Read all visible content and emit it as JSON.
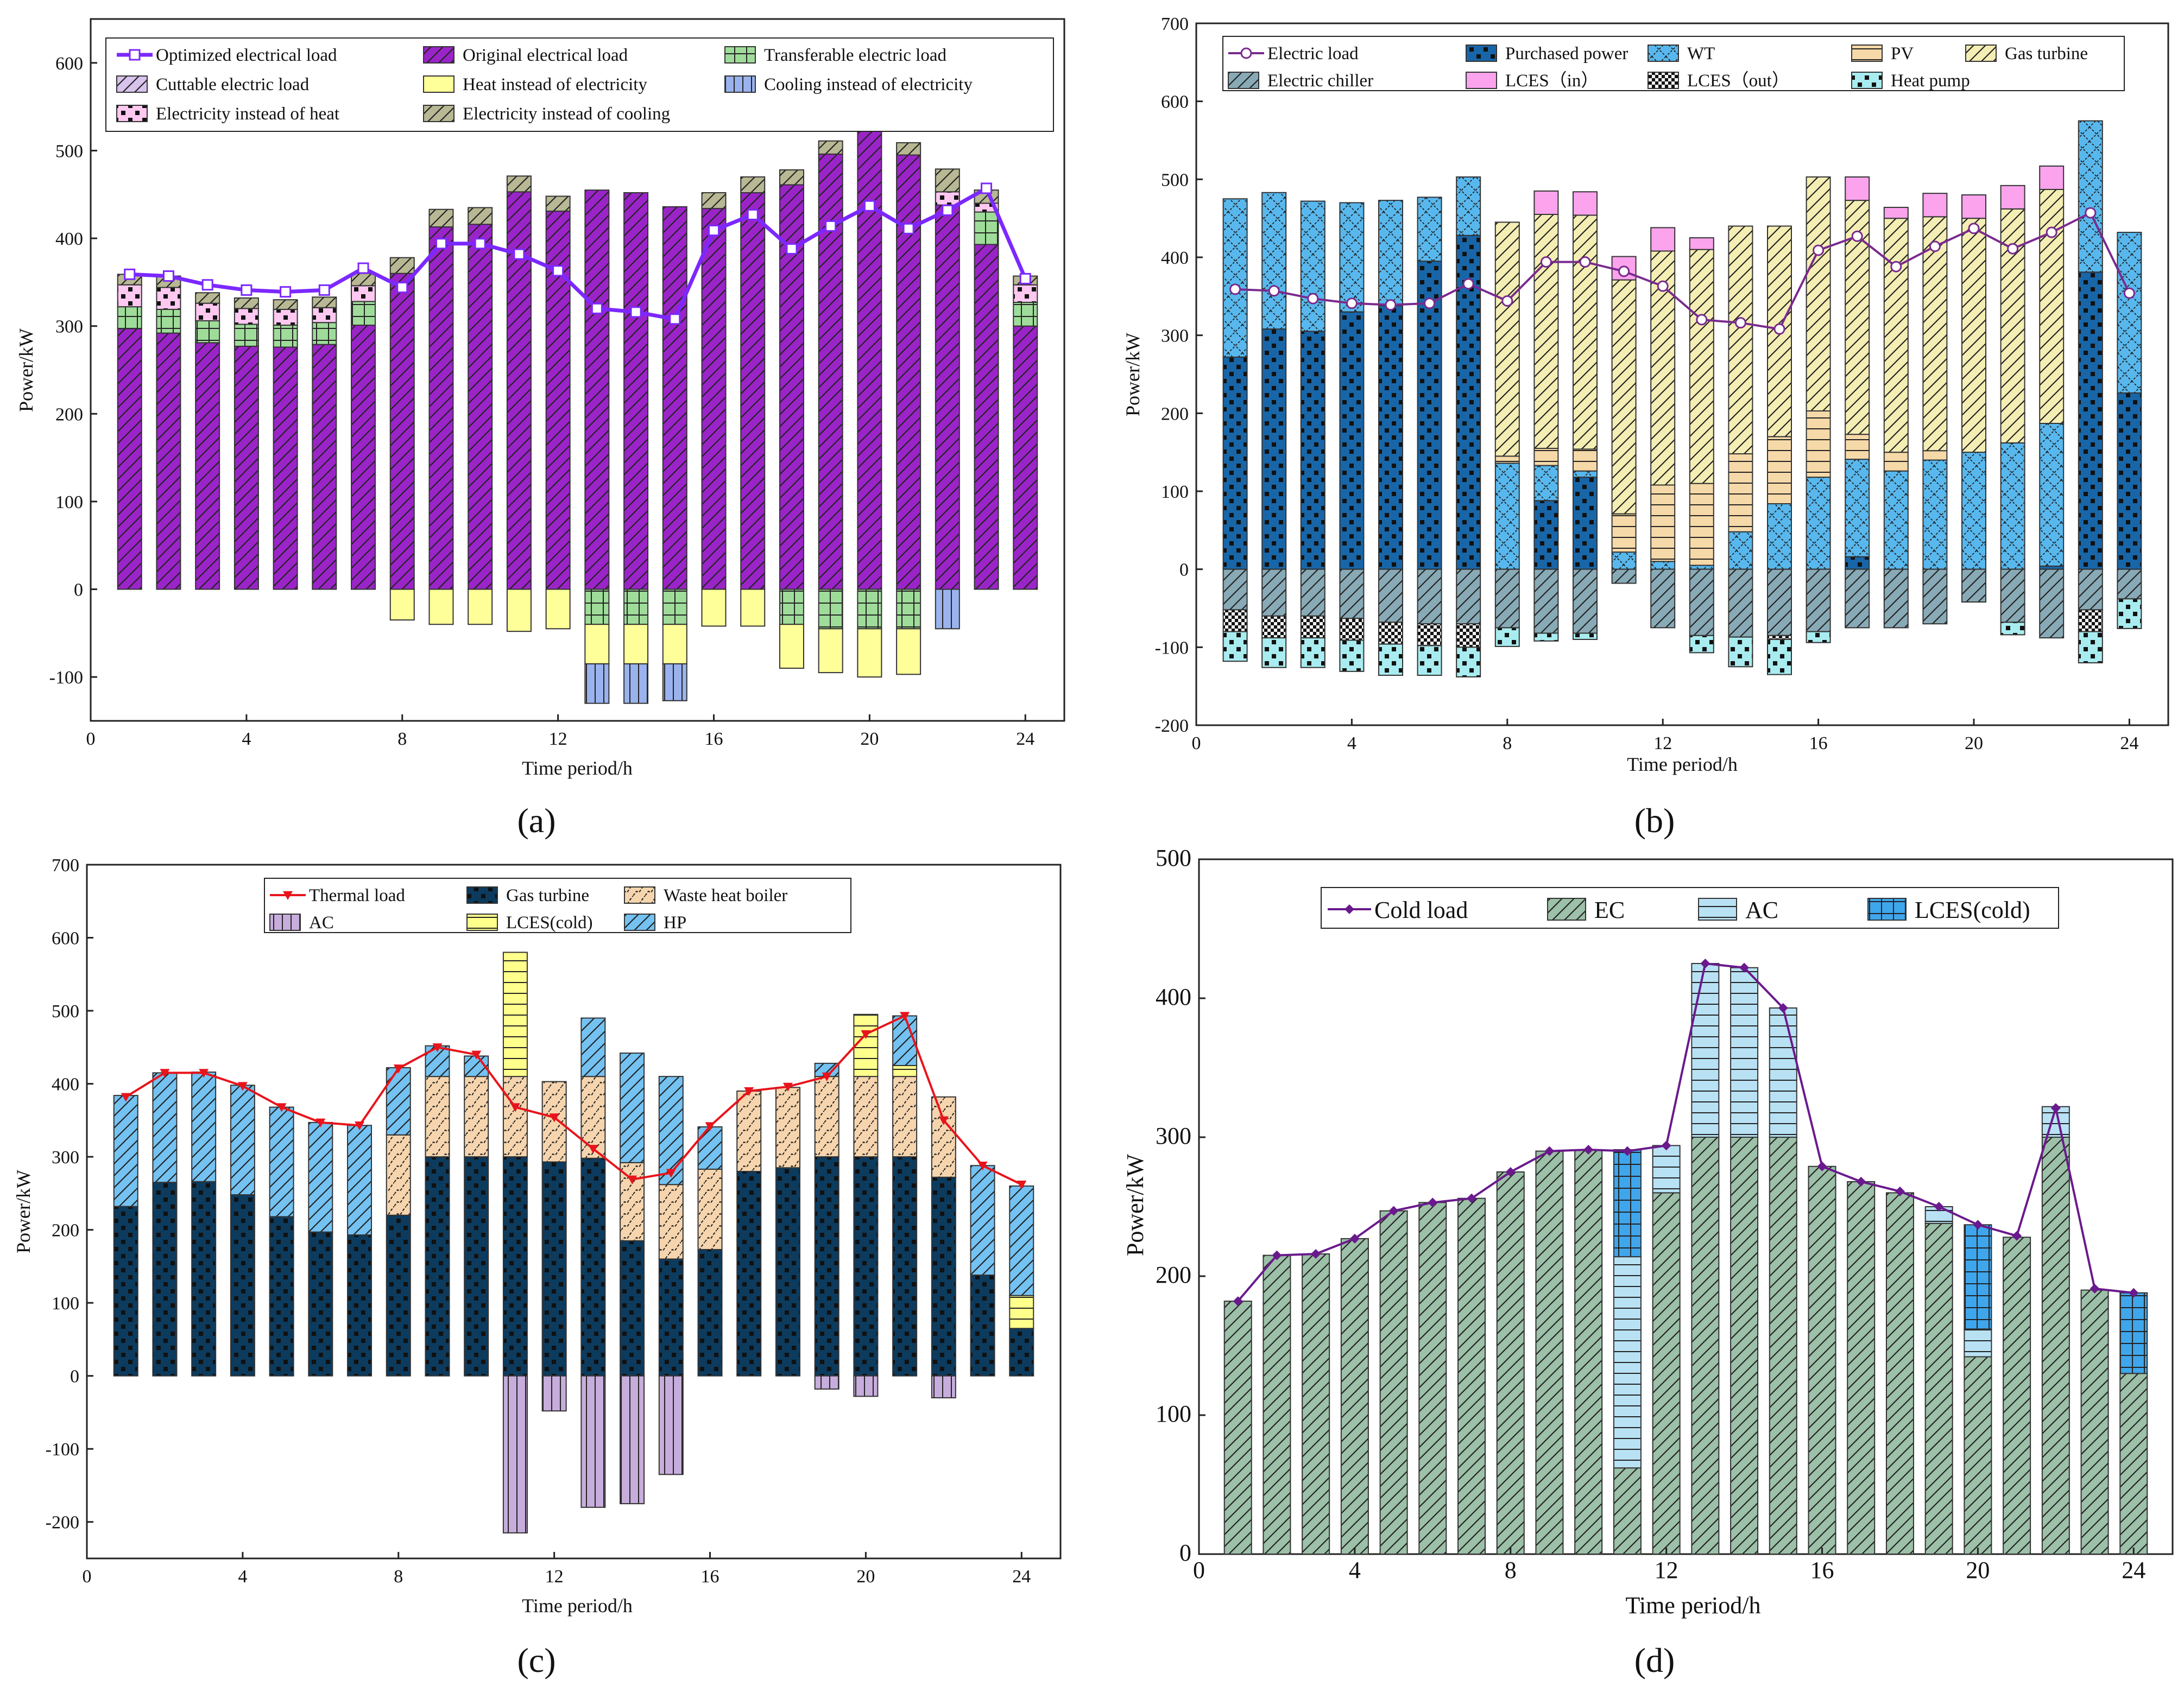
{
  "figure_labels": [
    "(a)",
    "(b)",
    "(c)",
    "(d)"
  ],
  "chart_data": [
    {
      "type": "bar",
      "id": "a",
      "panel_label": "(a)",
      "xlabel": "Time period/h",
      "ylabel": "Power/kW",
      "xlim": [
        0,
        25
      ],
      "ylim": [
        -150,
        650
      ],
      "xticks": [
        0,
        4,
        8,
        12,
        16,
        20,
        24
      ],
      "yticks": [
        -100,
        0,
        100,
        200,
        300,
        400,
        500,
        600
      ],
      "categories": [
        1,
        2,
        3,
        4,
        5,
        6,
        7,
        8,
        9,
        10,
        11,
        12,
        13,
        14,
        15,
        16,
        17,
        18,
        19,
        20,
        21,
        22,
        23,
        24
      ],
      "series": [
        {
          "name": "Original electrical load",
          "color": "#9b24c8",
          "hatch": "diag",
          "values": [
            297,
            292,
            281,
            277,
            276,
            279,
            301,
            360,
            413,
            416,
            453,
            431,
            455,
            452,
            436,
            434,
            452,
            461,
            496,
            525,
            495,
            438,
            393,
            300
          ]
        },
        {
          "name": "Transferable electric load",
          "color": "#9fdc9a",
          "hatch": "grid",
          "values": [
            25,
            27,
            25,
            25,
            25,
            25,
            27,
            0,
            0,
            0,
            0,
            0,
            -40,
            -40,
            -40,
            0,
            0,
            -40,
            -45,
            -45,
            -45,
            0,
            37,
            27
          ]
        },
        {
          "name": "Cuttable electric load",
          "color": "#d7c3ec",
          "hatch": "diag",
          "values": [
            0,
            0,
            0,
            0,
            0,
            0,
            0,
            0,
            0,
            0,
            0,
            0,
            0,
            0,
            0,
            0,
            0,
            0,
            0,
            0,
            0,
            0,
            0,
            0
          ]
        },
        {
          "name": "Heat instead of electricity",
          "color": "#ffff99",
          "hatch": "none",
          "values": [
            0,
            0,
            0,
            0,
            0,
            0,
            0,
            -35,
            -40,
            -40,
            -48,
            -45,
            -45,
            -45,
            -45,
            -42,
            -42,
            -50,
            -50,
            -55,
            -52,
            0,
            0,
            0
          ]
        },
        {
          "name": "Cooling instead of electricity",
          "color": "#9ab3ee",
          "hatch": "vline",
          "values": [
            0,
            0,
            0,
            0,
            0,
            0,
            0,
            0,
            0,
            0,
            0,
            0,
            -45,
            -45,
            -42,
            0,
            0,
            0,
            0,
            0,
            0,
            -45,
            0,
            0
          ]
        },
        {
          "name": "Electricity instead of heat",
          "color": "#ffc8f0",
          "hatch": "dots",
          "values": [
            25,
            25,
            20,
            18,
            18,
            17,
            18,
            0,
            0,
            0,
            0,
            0,
            0,
            0,
            0,
            0,
            0,
            0,
            0,
            0,
            0,
            15,
            10,
            20
          ]
        },
        {
          "name": "Electricity instead of cooling",
          "color": "#b8b894",
          "hatch": "diag",
          "values": [
            12,
            13,
            12,
            12,
            11,
            12,
            14,
            18,
            20,
            19,
            18,
            17,
            0,
            0,
            0,
            18,
            18,
            17,
            15,
            0,
            14,
            26,
            15,
            10
          ]
        }
      ],
      "lines": [
        {
          "name": "Optimized electrical load",
          "color": "#7c28ff",
          "marker": "square",
          "values": [
            359,
            357,
            347,
            341,
            339,
            341,
            366,
            344,
            394,
            394,
            382,
            363,
            320,
            316,
            308,
            409,
            427,
            388,
            414,
            437,
            411,
            432,
            457,
            354
          ]
        }
      ],
      "legend": [
        "Optimized electrical load",
        "Original electrical load",
        "Transferable electric load",
        "Cuttable electric load",
        "Heat instead of electricity",
        "Cooling instead of electricity",
        "Electricity instead of heat",
        "Electricity instead of cooling"
      ]
    },
    {
      "type": "bar",
      "id": "b",
      "panel_label": "(b)",
      "xlabel": "Time period/h",
      "ylabel": "Power/kW",
      "xlim": [
        0,
        25
      ],
      "ylim": [
        -200,
        700
      ],
      "xticks": [
        0,
        4,
        8,
        12,
        16,
        20,
        24
      ],
      "yticks": [
        -200,
        -100,
        0,
        100,
        200,
        300,
        400,
        500,
        600,
        700
      ],
      "categories": [
        1,
        2,
        3,
        4,
        5,
        6,
        7,
        8,
        9,
        10,
        11,
        12,
        13,
        14,
        15,
        16,
        17,
        18,
        19,
        20,
        21,
        22,
        23,
        24
      ],
      "series": [
        {
          "name": "Purchased power",
          "color": "#1866a8",
          "hatch": "dots",
          "values": [
            272,
            308,
            305,
            330,
            338,
            395,
            428,
            0,
            88,
            118,
            0,
            0,
            0,
            0,
            0,
            0,
            16,
            0,
            0,
            0,
            0,
            4,
            381,
            226
          ]
        },
        {
          "name": "WT",
          "color": "#58b8ee",
          "hatch": "cross",
          "values": [
            203,
            175,
            167,
            140,
            135,
            82,
            75,
            136,
            45,
            8,
            22,
            10,
            5,
            48,
            84,
            118,
            125,
            126,
            140,
            150,
            162,
            183,
            194,
            206
          ]
        },
        {
          "name": "PV",
          "color": "#f6d9a8",
          "hatch": "hline",
          "values": [
            0,
            0,
            0,
            0,
            0,
            0,
            0,
            9,
            22,
            28,
            49,
            98,
            105,
            100,
            86,
            85,
            32,
            24,
            12,
            0,
            0,
            0,
            0,
            0
          ]
        },
        {
          "name": "Gas turbine",
          "color": "#f5eeb4",
          "hatch": "diag",
          "values": [
            0,
            0,
            0,
            0,
            0,
            0,
            0,
            300,
            300,
            300,
            300,
            300,
            300,
            292,
            270,
            300,
            300,
            300,
            300,
            300,
            300,
            300,
            0,
            0
          ]
        },
        {
          "name": "LCES（in）",
          "color": "#fba3ec",
          "hatch": "none",
          "values": [
            0,
            0,
            0,
            0,
            0,
            0,
            0,
            0,
            30,
            30,
            30,
            30,
            15,
            0,
            0,
            0,
            30,
            14,
            30,
            30,
            30,
            30,
            0,
            0
          ]
        },
        {
          "name": "Electric chiller",
          "color": "#88aab6",
          "hatch": "diag",
          "values": [
            -52,
            -60,
            -60,
            -63,
            -68,
            -70,
            -70,
            -75,
            -82,
            -82,
            -18,
            -75,
            -85,
            -87,
            -85,
            -80,
            -75,
            -75,
            -70,
            -42,
            -68,
            -88,
            -52,
            -38
          ]
        },
        {
          "name": "LCES（out）",
          "color": "#111111",
          "hatch": "checker",
          "values": [
            -28,
            -28,
            -28,
            -28,
            -28,
            -28,
            -30,
            0,
            0,
            0,
            0,
            0,
            0,
            0,
            -5,
            0,
            0,
            0,
            0,
            0,
            0,
            0,
            -28,
            0
          ]
        },
        {
          "name": "Heat pump",
          "color": "#a8ecf0",
          "hatch": "dots",
          "values": [
            -38,
            -38,
            -38,
            -40,
            -40,
            -38,
            -38,
            -24,
            -10,
            -8,
            0,
            0,
            -22,
            -38,
            -45,
            -14,
            0,
            0,
            0,
            0,
            -16,
            0,
            -40,
            -38
          ]
        }
      ],
      "lines": [
        {
          "name": "Electric load",
          "color": "#7a2a8e",
          "marker": "circle",
          "values": [
            359,
            357,
            347,
            341,
            339,
            341,
            366,
            344,
            394,
            394,
            382,
            363,
            320,
            316,
            308,
            409,
            427,
            388,
            414,
            437,
            411,
            432,
            457,
            354
          ]
        }
      ],
      "legend": [
        "Electric load",
        "Purchased power",
        "WT",
        "PV",
        "Gas turbine",
        "Electric chiller",
        "LCES（in）",
        "LCES（out）",
        "Heat pump"
      ]
    },
    {
      "type": "bar",
      "id": "c",
      "panel_label": "(c)",
      "xlabel": "Time period/h",
      "ylabel": "Power/kW",
      "xlim": [
        0,
        25
      ],
      "ylim": [
        -250,
        700
      ],
      "xticks": [
        0,
        4,
        8,
        12,
        16,
        20,
        24
      ],
      "yticks": [
        -200,
        -100,
        0,
        100,
        200,
        300,
        400,
        500,
        600,
        700
      ],
      "categories": [
        1,
        2,
        3,
        4,
        5,
        6,
        7,
        8,
        9,
        10,
        11,
        12,
        13,
        14,
        15,
        16,
        17,
        18,
        19,
        20,
        21,
        22,
        23,
        24
      ],
      "series": [
        {
          "name": "Gas turbine",
          "color": "#0c3b5e",
          "hatch": "dots",
          "values": [
            232,
            265,
            266,
            248,
            218,
            197,
            193,
            220,
            300,
            300,
            300,
            293,
            298,
            185,
            160,
            173,
            280,
            285,
            300,
            300,
            300,
            272,
            138,
            65
          ]
        },
        {
          "name": "Waste heat boiler",
          "color": "#f6d5ae",
          "hatch": "zigzag",
          "values": [
            0,
            0,
            0,
            0,
            0,
            0,
            0,
            110,
            110,
            110,
            110,
            110,
            112,
            107,
            102,
            110,
            110,
            110,
            110,
            110,
            110,
            110,
            0,
            0
          ]
        },
        {
          "name": "LCES(cold)",
          "color": "#ffff8c",
          "hatch": "hline",
          "values": [
            0,
            0,
            0,
            0,
            0,
            0,
            0,
            0,
            0,
            0,
            170,
            0,
            0,
            0,
            0,
            0,
            0,
            0,
            0,
            85,
            15,
            0,
            0,
            45
          ]
        },
        {
          "name": "HP",
          "color": "#74c2f2",
          "hatch": "diag",
          "values": [
            152,
            150,
            150,
            150,
            150,
            150,
            150,
            92,
            42,
            28,
            0,
            0,
            80,
            150,
            148,
            58,
            0,
            0,
            18,
            0,
            68,
            0,
            150,
            150
          ]
        },
        {
          "name": "AC",
          "color": "#c6addc",
          "hatch": "vline",
          "values": [
            0,
            0,
            0,
            0,
            0,
            0,
            0,
            0,
            0,
            0,
            -215,
            -48,
            -180,
            -175,
            -135,
            0,
            0,
            0,
            -18,
            -28,
            0,
            -30,
            0,
            0
          ]
        }
      ],
      "lines": [
        {
          "name": "Thermal load",
          "color": "#e8141c",
          "marker": "triangle",
          "values": [
            382,
            415,
            415,
            397,
            368,
            347,
            343,
            421,
            450,
            440,
            368,
            354,
            311,
            269,
            278,
            342,
            390,
            396,
            410,
            468,
            493,
            350,
            288,
            262
          ]
        }
      ],
      "legend": [
        "Thermal load",
        "Gas turbine",
        "Waste heat boiler",
        "AC",
        "LCES(cold)",
        "HP"
      ]
    },
    {
      "type": "bar",
      "id": "d",
      "panel_label": "(d)",
      "xlabel": "Time period/h",
      "ylabel": "Power/kW",
      "xlim": [
        0,
        25
      ],
      "ylim": [
        0,
        500
      ],
      "xticks": [
        0,
        4,
        8,
        12,
        16,
        20,
        24
      ],
      "yticks": [
        0,
        100,
        200,
        300,
        400,
        500
      ],
      "categories": [
        1,
        2,
        3,
        4,
        5,
        6,
        7,
        8,
        9,
        10,
        11,
        12,
        13,
        14,
        15,
        16,
        17,
        18,
        19,
        20,
        21,
        22,
        23,
        24
      ],
      "series": [
        {
          "name": "EC",
          "color": "#9cc0a8",
          "hatch": "diag",
          "values": [
            182,
            215,
            216,
            227,
            247,
            253,
            256,
            275,
            290,
            291,
            62,
            260,
            300,
            300,
            300,
            279,
            268,
            260,
            238,
            142,
            228,
            300,
            190,
            130
          ]
        },
        {
          "name": "AC",
          "color": "#b8e2f4",
          "hatch": "hline",
          "values": [
            0,
            0,
            0,
            0,
            0,
            0,
            0,
            0,
            0,
            0,
            152,
            34,
            125,
            122,
            93,
            0,
            0,
            0,
            12,
            20,
            0,
            22,
            0,
            0
          ]
        },
        {
          "name": "LCES(cold)",
          "color": "#3fa6ec",
          "hatch": "grid",
          "values": [
            0,
            0,
            0,
            0,
            0,
            0,
            0,
            0,
            0,
            0,
            77,
            0,
            0,
            0,
            0,
            0,
            0,
            0,
            0,
            75,
            0,
            0,
            0,
            58
          ]
        }
      ],
      "lines": [
        {
          "name": "Cold load",
          "color": "#6a1a8c",
          "marker": "diamond",
          "values": [
            182,
            215,
            216,
            227,
            247,
            253,
            256,
            275,
            290,
            291,
            290,
            294,
            425,
            422,
            393,
            279,
            268,
            261,
            250,
            237,
            229,
            321,
            191,
            188
          ]
        }
      ],
      "legend": [
        "Cold load",
        "EC",
        "AC",
        "LCES(cold)"
      ]
    }
  ]
}
